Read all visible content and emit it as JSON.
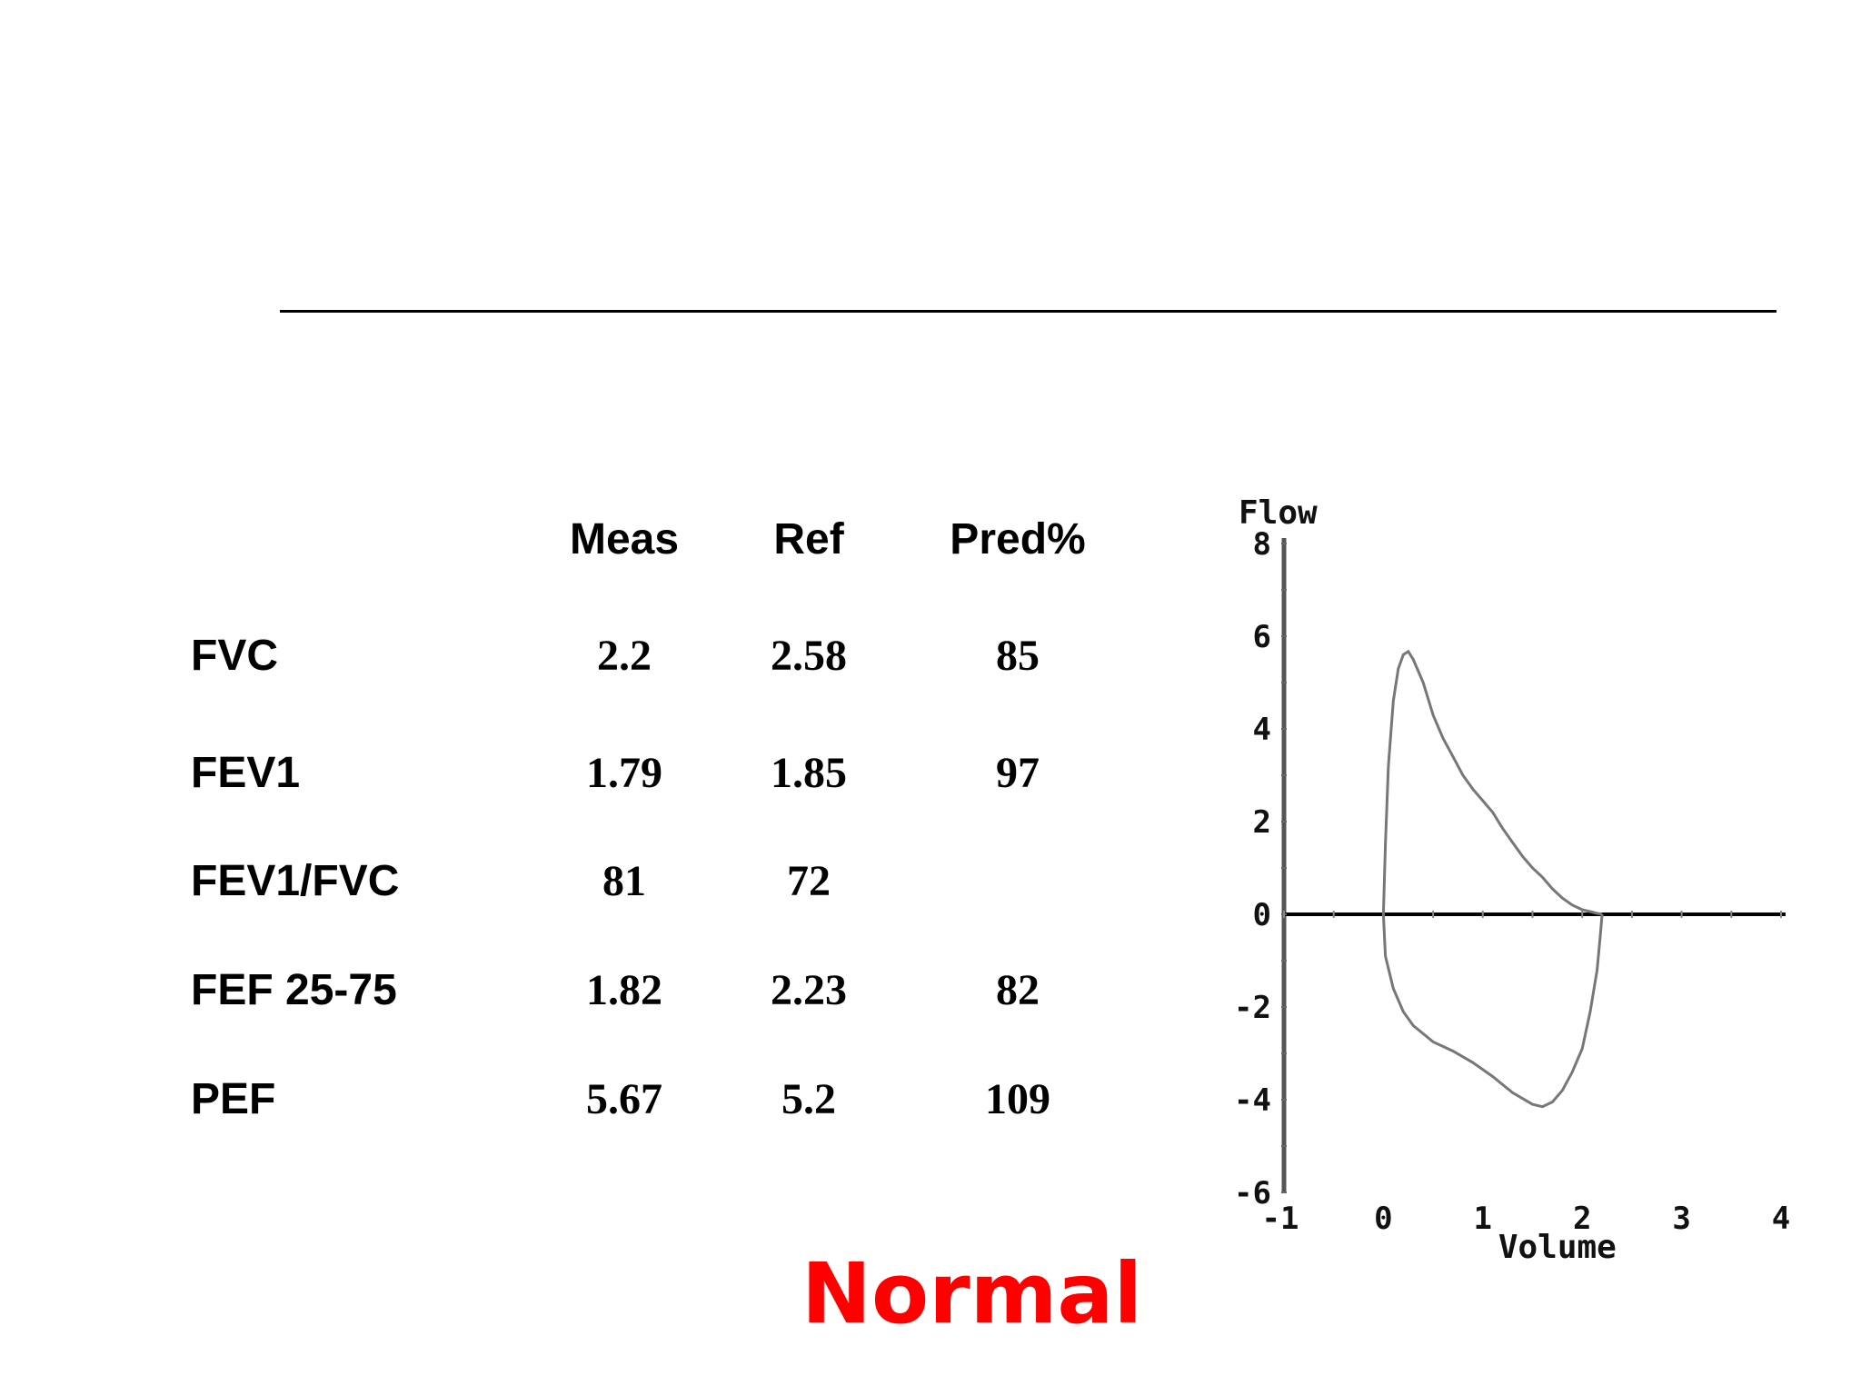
{
  "table": {
    "headers": [
      "Meas",
      "Ref",
      "Pred%"
    ],
    "rows": [
      {
        "label": "FVC",
        "meas": "2.2",
        "ref": "2.58",
        "pred": "85"
      },
      {
        "label": "FEV1",
        "meas": "1.79",
        "ref": "1.85",
        "pred": "97"
      },
      {
        "label": "FEV1/FVC",
        "meas": "81",
        "ref": "72",
        "pred": ""
      },
      {
        "label": "FEF 25-75",
        "meas": "1.82",
        "ref": "2.23",
        "pred": "82"
      },
      {
        "label": "PEF",
        "meas": "5.67",
        "ref": "5.2",
        "pred": "109"
      }
    ]
  },
  "verdict": "Normal",
  "colors": {
    "verdict": "#ff0000",
    "curve": "#777777",
    "axis": "#000000"
  },
  "chart_data": {
    "type": "line",
    "xlabel": "Volume",
    "ylabel": "Flow",
    "xlim": [
      -1,
      4
    ],
    "ylim": [
      -6,
      8
    ],
    "x_ticks": [
      "-1",
      "0",
      "1",
      "2",
      "3",
      "4"
    ],
    "y_ticks": [
      "8",
      "6",
      "4",
      "2",
      "0",
      "-2",
      "-4",
      "-6"
    ],
    "grid": false,
    "series": [
      {
        "x": [
          0.0,
          0.02,
          0.05,
          0.1,
          0.15,
          0.2,
          0.25,
          0.3,
          0.4,
          0.5,
          0.6,
          0.7,
          0.8,
          0.9,
          1.0,
          1.1,
          1.2,
          1.3,
          1.4,
          1.5,
          1.6,
          1.7,
          1.8,
          1.9,
          2.0,
          2.1,
          2.15,
          2.18,
          2.2
        ],
        "y": [
          0.0,
          1.5,
          3.2,
          4.6,
          5.3,
          5.6,
          5.67,
          5.5,
          5.0,
          4.3,
          3.8,
          3.4,
          3.0,
          2.7,
          2.45,
          2.2,
          1.85,
          1.55,
          1.25,
          1.0,
          0.8,
          0.55,
          0.35,
          0.2,
          0.1,
          0.05,
          0.02,
          0.01,
          0.0
        ]
      },
      {
        "x": [
          0.0,
          0.02,
          0.1,
          0.2,
          0.3,
          0.5,
          0.7,
          0.9,
          1.1,
          1.3,
          1.5,
          1.6,
          1.7,
          1.8,
          1.9,
          2.0,
          2.08,
          2.15,
          2.18,
          2.2
        ],
        "y": [
          0.0,
          -0.9,
          -1.6,
          -2.1,
          -2.4,
          -2.75,
          -2.95,
          -3.2,
          -3.5,
          -3.85,
          -4.1,
          -4.15,
          -4.05,
          -3.8,
          -3.4,
          -2.9,
          -2.1,
          -1.2,
          -0.5,
          0.0
        ]
      }
    ]
  }
}
